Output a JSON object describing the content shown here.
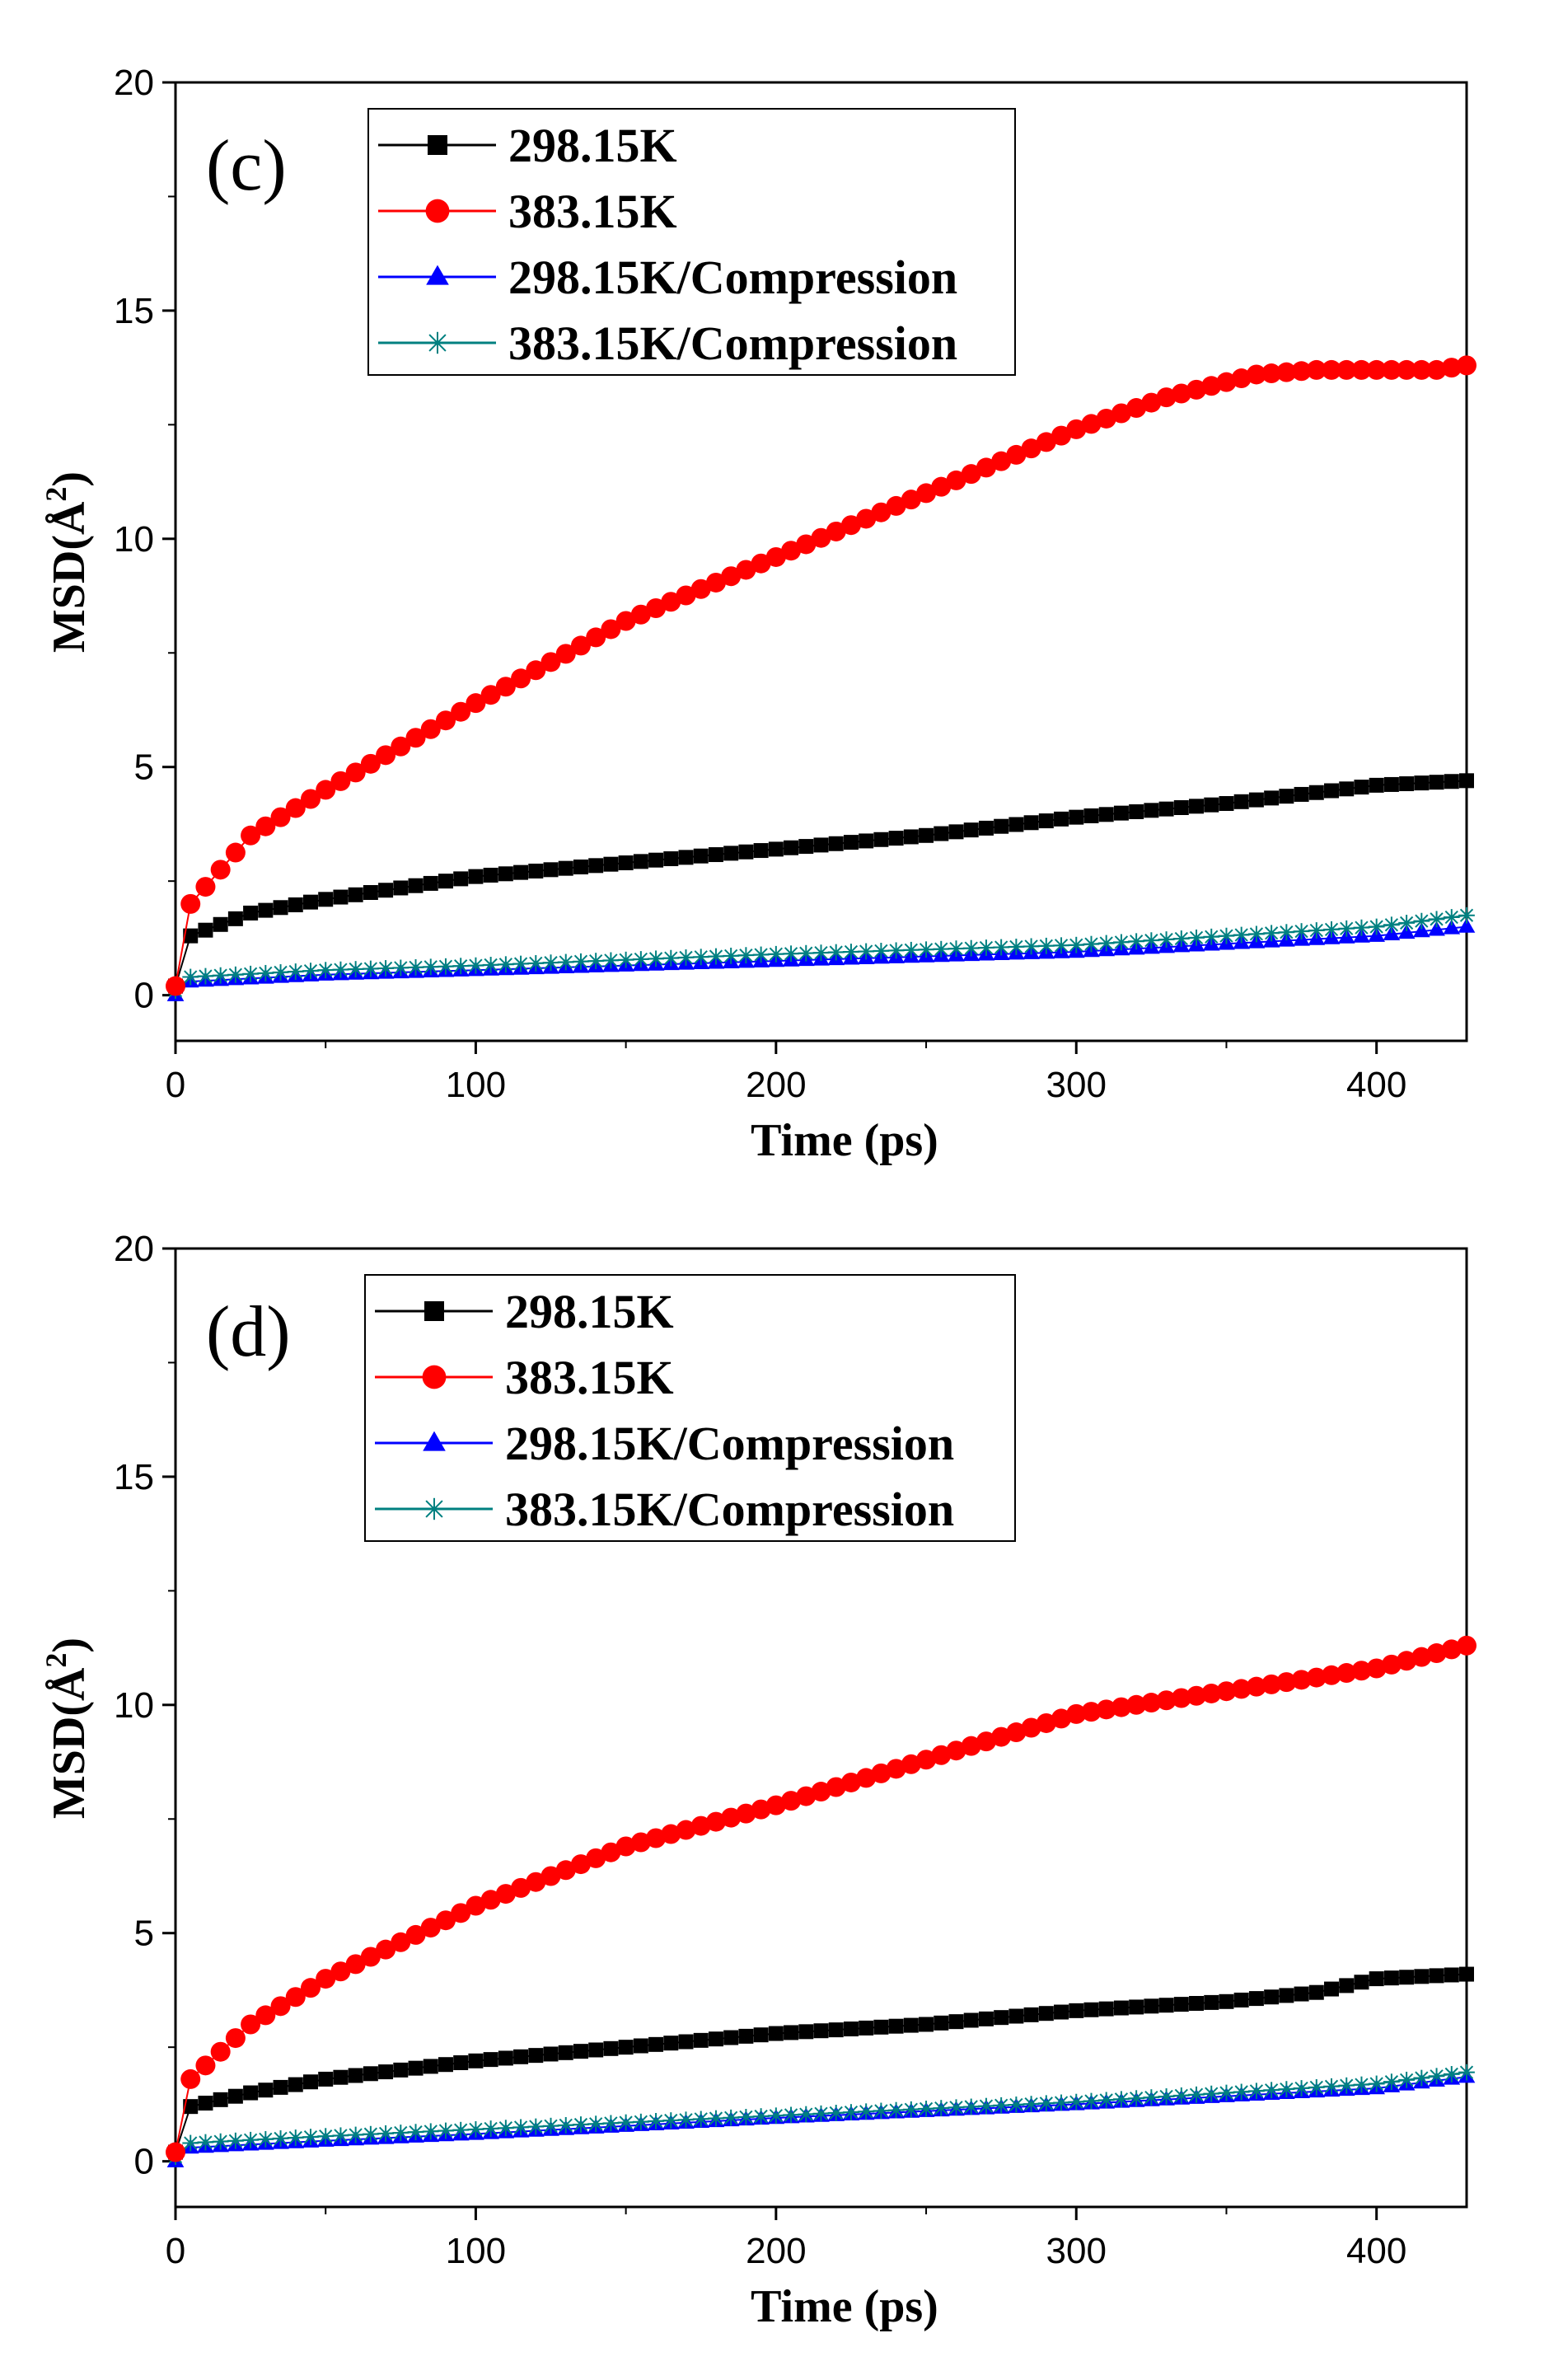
{
  "chart_data": [
    {
      "type": "scatter",
      "panel_label": "(c)",
      "xlabel": "Time (ps)",
      "ylabel": "MSD(Å²)",
      "ylabel_main": "MSD(",
      "ylabel_unit": "Å",
      "ylabel_exp": "2",
      "ylabel_close": ")",
      "xlim": [
        0,
        430
      ],
      "ylim": [
        -1,
        20
      ],
      "xticks": [
        0,
        100,
        200,
        300,
        400
      ],
      "yticks": [
        0,
        5,
        10,
        15,
        20
      ],
      "xtick_labels": [
        "0",
        "100",
        "200",
        "300",
        "400"
      ],
      "ytick_labels": [
        "0",
        "5",
        "10",
        "15",
        "20"
      ],
      "legend_position": "top-center",
      "series": [
        {
          "name": "298.15K",
          "color": "#000000",
          "marker": "square",
          "x": [
            0,
            5,
            25,
            50,
            100,
            150,
            200,
            250,
            300,
            350,
            400,
            430
          ],
          "values": [
            0.2,
            1.3,
            1.8,
            2.1,
            2.6,
            2.9,
            3.2,
            3.5,
            3.9,
            4.2,
            4.6,
            4.7
          ]
        },
        {
          "name": "383.15K",
          "color": "#ff0000",
          "marker": "circle",
          "x": [
            0,
            5,
            25,
            50,
            100,
            150,
            200,
            250,
            300,
            330,
            360,
            380,
            400,
            420,
            430
          ],
          "values": [
            0.2,
            2.0,
            3.5,
            4.5,
            6.4,
            8.2,
            9.6,
            11.0,
            12.4,
            13.1,
            13.6,
            13.7,
            13.7,
            13.7,
            13.8
          ]
        },
        {
          "name": "298.15K/Compression",
          "color": "#0000ff",
          "marker": "triangle",
          "x": [
            0,
            5,
            50,
            100,
            200,
            300,
            400,
            430
          ],
          "values": [
            0.0,
            0.3,
            0.45,
            0.55,
            0.75,
            0.95,
            1.3,
            1.5
          ]
        },
        {
          "name": "383.15K/Compression",
          "color": "#008080",
          "marker": "star",
          "x": [
            0,
            5,
            50,
            100,
            200,
            300,
            400,
            430
          ],
          "values": [
            0.1,
            0.4,
            0.55,
            0.65,
            0.9,
            1.1,
            1.5,
            1.75
          ]
        }
      ]
    },
    {
      "type": "scatter",
      "panel_label": "(d)",
      "xlabel": "Time (ps)",
      "ylabel": "MSD(Å²)",
      "ylabel_main": "MSD(",
      "ylabel_unit": "Å",
      "ylabel_exp": "2",
      "ylabel_close": ")",
      "xlim": [
        0,
        430
      ],
      "ylim": [
        -1,
        20
      ],
      "xticks": [
        0,
        100,
        200,
        300,
        400
      ],
      "yticks": [
        0,
        5,
        10,
        15,
        20
      ],
      "xtick_labels": [
        "0",
        "100",
        "200",
        "300",
        "400"
      ],
      "ytick_labels": [
        "0",
        "5",
        "10",
        "15",
        "20"
      ],
      "legend_position": "top-center",
      "series": [
        {
          "name": "298.15K",
          "color": "#000000",
          "marker": "square",
          "x": [
            0,
            5,
            25,
            50,
            100,
            150,
            200,
            250,
            300,
            350,
            380,
            400,
            430
          ],
          "values": [
            0.2,
            1.2,
            1.5,
            1.8,
            2.2,
            2.5,
            2.8,
            3.0,
            3.3,
            3.5,
            3.7,
            4.0,
            4.1
          ]
        },
        {
          "name": "383.15K",
          "color": "#ff0000",
          "marker": "circle",
          "x": [
            0,
            5,
            25,
            50,
            100,
            150,
            200,
            250,
            300,
            350,
            400,
            430
          ],
          "values": [
            0.2,
            1.8,
            3.0,
            4.0,
            5.6,
            6.9,
            7.8,
            8.8,
            9.8,
            10.3,
            10.8,
            11.3
          ]
        },
        {
          "name": "298.15K/Compression",
          "color": "#0000ff",
          "marker": "triangle",
          "x": [
            0,
            5,
            50,
            100,
            200,
            300,
            400,
            430
          ],
          "values": [
            0.0,
            0.3,
            0.45,
            0.6,
            0.95,
            1.25,
            1.6,
            1.85
          ]
        },
        {
          "name": "383.15K/Compression",
          "color": "#008080",
          "marker": "star",
          "x": [
            0,
            5,
            50,
            100,
            200,
            300,
            400,
            430
          ],
          "values": [
            0.1,
            0.4,
            0.55,
            0.7,
            1.0,
            1.3,
            1.7,
            1.95
          ]
        }
      ]
    }
  ]
}
